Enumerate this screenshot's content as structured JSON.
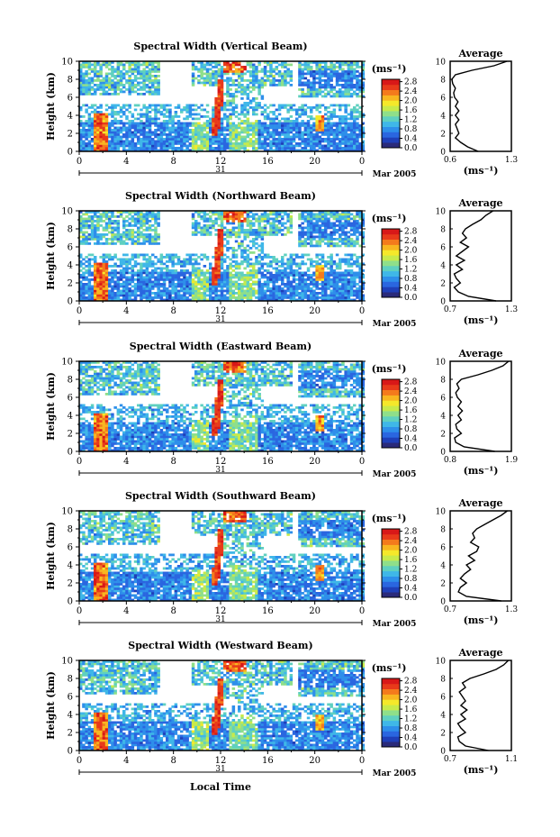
{
  "colors": {
    "scale": [
      "#2a2a7a",
      "#1f3fb8",
      "#2a66e0",
      "#2e8fea",
      "#3fb7e8",
      "#5fd0c0",
      "#8fdf8a",
      "#c8ea4a",
      "#f5e82a",
      "#f8b620",
      "#f47a1c",
      "#e83a1a",
      "#d81818"
    ],
    "background": "#ffffff",
    "line": "#000000"
  },
  "chart_data": [
    {
      "type": "heatmap",
      "title": "Spectral Width (Vertical Beam)",
      "ylabel": "Height (km)",
      "x_ticks": [
        "0",
        "4",
        "8",
        "12",
        "16",
        "20",
        "0"
      ],
      "y_ticks": [
        "0",
        "2",
        "4",
        "6",
        "8",
        "10"
      ],
      "xlim": [
        0,
        24
      ],
      "ylim": [
        0,
        10
      ],
      "date_day": "31",
      "date_label": "Mar 2005",
      "colorbar_unit": "(ms⁻¹)",
      "colorbar_ticks": [
        "0.0",
        "0.4",
        "0.8",
        "1.2",
        "1.6",
        "2.0",
        "2.4",
        "2.8"
      ],
      "colorbar_range": [
        0.0,
        2.9
      ],
      "profile": {
        "title": "Average",
        "xlabel": "(ms⁻¹)",
        "x_ticks": [
          "0.6",
          "1.3"
        ],
        "xlim": [
          0.6,
          1.3
        ],
        "y_ticks": [
          "0",
          "2",
          "4",
          "6",
          "8",
          "10"
        ],
        "heights": [
          0,
          0.5,
          1,
          1.5,
          2,
          2.5,
          3,
          3.5,
          4,
          4.5,
          5,
          5.5,
          6,
          6.5,
          7,
          7.5,
          8,
          8.5,
          9,
          9.5,
          10
        ],
        "values": [
          0.92,
          0.8,
          0.72,
          0.66,
          0.7,
          0.68,
          0.66,
          0.7,
          0.66,
          0.7,
          0.66,
          0.69,
          0.65,
          0.64,
          0.66,
          0.63,
          0.62,
          0.66,
          0.85,
          1.1,
          1.25
        ]
      }
    },
    {
      "type": "heatmap",
      "title": "Spectral Width (Northward Beam)",
      "ylabel": "Height (km)",
      "x_ticks": [
        "0",
        "4",
        "8",
        "12",
        "16",
        "20",
        "0"
      ],
      "y_ticks": [
        "0",
        "2",
        "4",
        "6",
        "8",
        "10"
      ],
      "xlim": [
        0,
        24
      ],
      "ylim": [
        0,
        10
      ],
      "date_day": "31",
      "date_label": "Mar 2005",
      "colorbar_unit": "(ms⁻¹)",
      "colorbar_ticks": [
        "0.0",
        "0.4",
        "0.8",
        "1.2",
        "1.6",
        "2.0",
        "2.4",
        "2.8"
      ],
      "colorbar_range": [
        0.0,
        2.9
      ],
      "profile": {
        "title": "Average",
        "xlabel": "(ms⁻¹)",
        "x_ticks": [
          "0.7",
          "1.3"
        ],
        "xlim": [
          0.7,
          1.3
        ],
        "heights": [
          0,
          0.5,
          1,
          1.5,
          2,
          2.5,
          3,
          3.5,
          4,
          4.5,
          5,
          5.5,
          6,
          6.5,
          7,
          7.5,
          8,
          8.5,
          9,
          9.5,
          10
        ],
        "values": [
          1.15,
          0.88,
          0.78,
          0.74,
          0.8,
          0.76,
          0.74,
          0.82,
          0.76,
          0.84,
          0.76,
          0.82,
          0.88,
          0.8,
          0.86,
          0.82,
          0.85,
          0.92,
          1.0,
          1.05,
          1.12
        ]
      }
    },
    {
      "type": "heatmap",
      "title": "Spectral Width (Eastward Beam)",
      "ylabel": "Height (km)",
      "x_ticks": [
        "0",
        "4",
        "8",
        "12",
        "16",
        "20",
        "0"
      ],
      "y_ticks": [
        "0",
        "2",
        "4",
        "6",
        "8",
        "10"
      ],
      "xlim": [
        0,
        24
      ],
      "ylim": [
        0,
        10
      ],
      "date_day": "31",
      "date_label": "Mar 2005",
      "colorbar_unit": "(ms⁻¹)",
      "colorbar_ticks": [
        "0.0",
        "0.4",
        "0.8",
        "1.2",
        "1.6",
        "2.0",
        "2.4",
        "2.8"
      ],
      "colorbar_range": [
        0.0,
        2.9
      ],
      "profile": {
        "title": "Average",
        "xlabel": "(ms⁻¹)",
        "x_ticks": [
          "0.8",
          "1.9"
        ],
        "xlim": [
          0.8,
          1.9
        ],
        "heights": [
          0,
          0.5,
          1,
          1.5,
          2,
          2.5,
          3,
          3.5,
          4,
          4.5,
          5,
          5.5,
          6,
          6.5,
          7,
          7.5,
          8,
          8.5,
          9,
          9.5,
          10
        ],
        "values": [
          1.6,
          1.05,
          0.9,
          0.88,
          1.0,
          0.92,
          0.9,
          1.0,
          0.94,
          1.02,
          0.94,
          1.0,
          0.93,
          0.9,
          0.96,
          0.92,
          1.0,
          1.3,
          1.55,
          1.75,
          1.85
        ]
      }
    },
    {
      "type": "heatmap",
      "title": "Spectral Width (Southward Beam)",
      "ylabel": "Height (km)",
      "x_ticks": [
        "0",
        "4",
        "8",
        "12",
        "16",
        "20",
        "0"
      ],
      "y_ticks": [
        "0",
        "2",
        "4",
        "6",
        "8",
        "10"
      ],
      "xlim": [
        0,
        24
      ],
      "ylim": [
        0,
        10
      ],
      "date_day": "31",
      "date_label": "Mar 2005",
      "colorbar_unit": "(ms⁻¹)",
      "colorbar_ticks": [
        "0.0",
        "0.4",
        "0.8",
        "1.2",
        "1.6",
        "2.0",
        "2.4",
        "2.8"
      ],
      "colorbar_range": [
        0.0,
        2.9
      ],
      "profile": {
        "title": "Average",
        "xlabel": "(ms⁻¹)",
        "x_ticks": [
          "0.7",
          "1.3"
        ],
        "xlim": [
          0.7,
          1.3
        ],
        "heights": [
          0,
          0.5,
          1,
          1.5,
          2,
          2.5,
          3,
          3.5,
          4,
          4.5,
          5,
          5.5,
          6,
          6.5,
          7,
          7.5,
          8,
          8.5,
          9,
          9.5,
          10
        ],
        "values": [
          1.2,
          0.86,
          0.78,
          0.8,
          0.86,
          0.8,
          0.84,
          0.9,
          0.86,
          0.94,
          0.88,
          0.96,
          0.98,
          0.9,
          0.94,
          0.92,
          0.96,
          1.04,
          1.12,
          1.2,
          1.26
        ]
      }
    },
    {
      "type": "heatmap",
      "title": "Spectral Width (Westward Beam)",
      "ylabel": "Height (km)",
      "xlabel": "Local Time",
      "x_ticks": [
        "0",
        "4",
        "8",
        "12",
        "16",
        "20",
        "0"
      ],
      "y_ticks": [
        "0",
        "2",
        "4",
        "6",
        "8",
        "10"
      ],
      "xlim": [
        0,
        24
      ],
      "ylim": [
        0,
        10
      ],
      "date_day": "31",
      "date_label": "Mar 2005",
      "colorbar_unit": "(ms⁻¹)",
      "colorbar_ticks": [
        "0.0",
        "0.4",
        "0.8",
        "1.2",
        "1.6",
        "2.0",
        "2.4",
        "2.8"
      ],
      "colorbar_range": [
        0.0,
        2.9
      ],
      "profile": {
        "title": "Average",
        "xlabel": "(ms⁻¹)",
        "x_ticks": [
          "0.7",
          "1.1"
        ],
        "xlim": [
          0.7,
          1.1
        ],
        "heights": [
          0,
          0.5,
          1,
          1.5,
          2,
          2.5,
          3,
          3.5,
          4,
          4.5,
          5,
          5.5,
          6,
          6.5,
          7,
          7.5,
          8,
          8.5,
          9,
          9.5,
          10
        ],
        "values": [
          0.95,
          0.8,
          0.76,
          0.75,
          0.8,
          0.77,
          0.75,
          0.8,
          0.77,
          0.81,
          0.77,
          0.8,
          0.78,
          0.76,
          0.8,
          0.78,
          0.83,
          0.92,
          1.0,
          1.05,
          1.08
        ]
      }
    }
  ]
}
